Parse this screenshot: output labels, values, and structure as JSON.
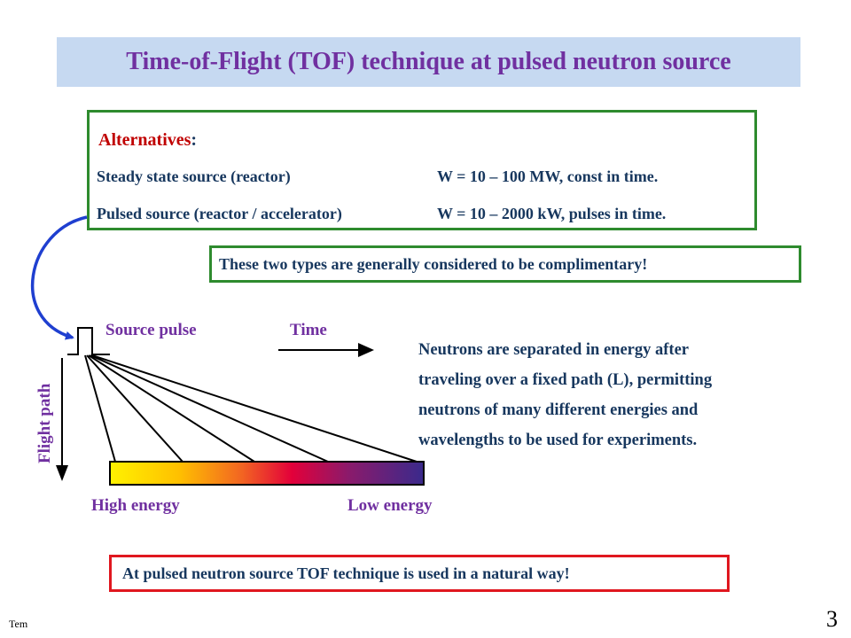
{
  "title": "Time-of-Flight (TOF) technique at pulsed neutron source",
  "alternatives": {
    "heading": "Alternatives",
    "heading_colon": ":",
    "rows": [
      {
        "label": "Steady state source (reactor)",
        "value": "W = 10 – 100 MW,  const in time."
      },
      {
        "label": "Pulsed source (reactor / accelerator)",
        "value": "W = 10 – 2000  kW, pulses in time."
      }
    ]
  },
  "complementary_note": "These two types are generally considered to be complimentary!",
  "diagram": {
    "source_pulse_label": "Source pulse",
    "time_label": "Time",
    "flight_path_label": "Flight path",
    "high_energy_label": "High energy",
    "low_energy_label": "Low energy"
  },
  "description_lines": [
    "Neutrons are separated in energy after",
    "traveling over a fixed path (L), permitting",
    "neutrons of many different energies and",
    "wavelengths to be used for experiments."
  ],
  "conclusion": "At pulsed neutron source TOF technique is used in a natural way!",
  "footer": {
    "corner_text": "Tem",
    "page_number": "3"
  },
  "colors": {
    "title_bg": "#c6d9f1",
    "title_text": "#7030a0",
    "green_border": "#2e8b2e",
    "red_border": "#e0171f",
    "body_text": "#17375e",
    "heading_red": "#c00000",
    "connector_blue": "#1f3fd0"
  }
}
